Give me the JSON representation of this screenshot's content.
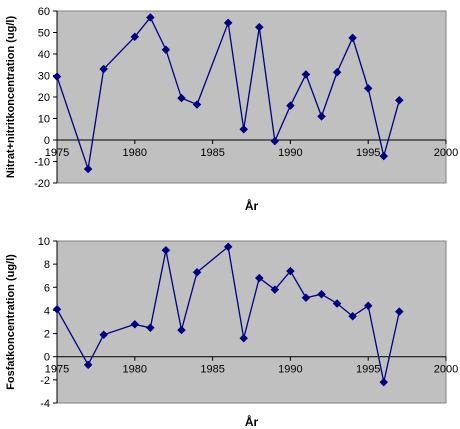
{
  "chart_data": [
    {
      "type": "line",
      "title": "",
      "xlabel": "År",
      "ylabel": "Nitrat+nitritkoncentration (ug/l)",
      "xlim": [
        1975,
        2000
      ],
      "ylim": [
        -20,
        60
      ],
      "x_ticks": [
        1975,
        1980,
        1985,
        1990,
        1995,
        2000
      ],
      "y_ticks": [
        -20,
        -10,
        0,
        10,
        20,
        30,
        40,
        50,
        60
      ],
      "grid": false,
      "legend": "none",
      "colors": {
        "plot_bg": "#c0c0c0",
        "series": "#000080"
      },
      "series": [
        {
          "x": [
            1975,
            1977,
            1978,
            1980,
            1981,
            1982,
            1983,
            1984,
            1986,
            1987,
            1988,
            1989,
            1990,
            1991,
            1992,
            1993,
            1994,
            1995,
            1996,
            1997
          ],
          "values": [
            29.5,
            -13.5,
            33,
            48,
            57,
            42,
            19.5,
            16.5,
            54.5,
            5,
            52.5,
            -0.5,
            16,
            30.5,
            11,
            31.5,
            47.5,
            24,
            -7.5,
            18.5
          ]
        }
      ]
    },
    {
      "type": "line",
      "title": "",
      "xlabel": "År",
      "ylabel": "Fosfatkoncentration (ug/l)",
      "xlim": [
        1975,
        2000
      ],
      "ylim": [
        -4,
        10
      ],
      "x_ticks": [
        1975,
        1980,
        1985,
        1990,
        1995,
        2000
      ],
      "y_ticks": [
        -4,
        -2,
        0,
        2,
        4,
        6,
        8,
        10
      ],
      "grid": false,
      "legend": "none",
      "colors": {
        "plot_bg": "#c0c0c0",
        "series": "#000080"
      },
      "series": [
        {
          "x": [
            1975,
            1977,
            1978,
            1980,
            1981,
            1982,
            1983,
            1984,
            1986,
            1987,
            1988,
            1989,
            1990,
            1991,
            1992,
            1993,
            1994,
            1995,
            1996,
            1997
          ],
          "values": [
            4.1,
            -0.7,
            1.9,
            2.8,
            2.5,
            9.2,
            2.3,
            7.3,
            9.5,
            1.6,
            6.8,
            5.8,
            7.4,
            5.1,
            5.4,
            4.6,
            3.5,
            4.4,
            -2.2,
            3.9
          ]
        }
      ]
    }
  ]
}
